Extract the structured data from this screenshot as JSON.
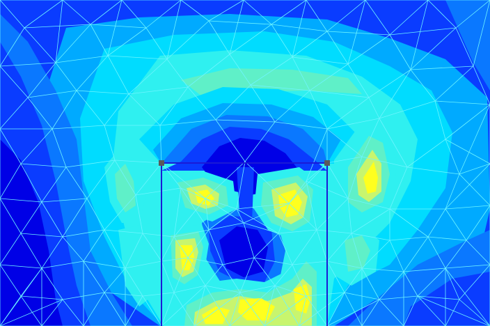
{
  "palette": {
    "deep_blue": "#0000e6",
    "blue": "#0a3cff",
    "azure": "#0a78ff",
    "sky": "#00aaff",
    "cyan": "#00dcff",
    "aqua": "#2ff0f0",
    "teal_green": "#5ff0c8",
    "lime": "#c8f56e",
    "yellow": "#ffff1e",
    "mesh_line": "#6ef5ff",
    "frame_line": "#1b1bd6",
    "node_marker": "#5a5a5a"
  },
  "visualization": {
    "kind": "filled-contour field on triangular mesh",
    "mesh_visible": true,
    "frame_rectangle_visible": true,
    "corner_node_markers": 2
  }
}
